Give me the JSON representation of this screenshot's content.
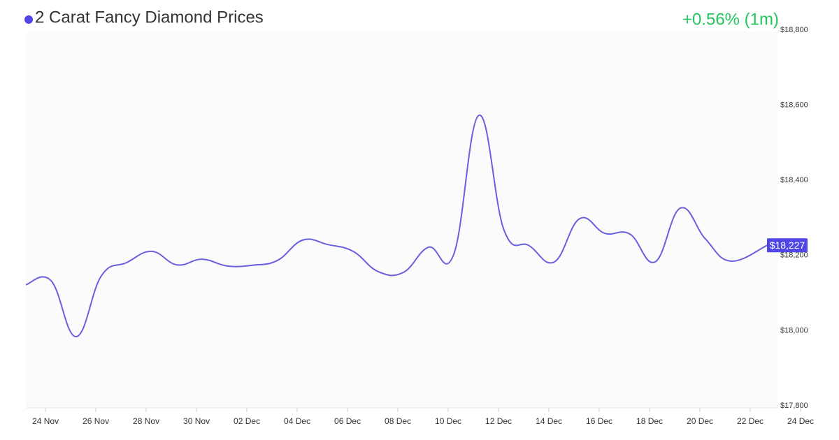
{
  "chart_data": {
    "type": "line",
    "title": "2 Carat Fancy Diamond Prices",
    "change": "+0.56% (1m)",
    "current_price": {
      "value": 18227,
      "label": "$18,227"
    },
    "x": [
      -0.78,
      0.22,
      1.22,
      2.22,
      3.22,
      4.22,
      5.22,
      6.22,
      7.22,
      8.22,
      9.22,
      10.22,
      11.22,
      12.22,
      13.22,
      14.22,
      15.22,
      16.22,
      17.22,
      18.22,
      19.22,
      20.22,
      21.22,
      22.22,
      23.22,
      24.22,
      25.22,
      26.22,
      27.22,
      28.67
    ],
    "series": [
      {
        "name": "2 Carat Fancy Diamond Prices",
        "color": "#6a5fe0",
        "values": [
          18122,
          18133,
          17984,
          18146,
          18181,
          18211,
          18175,
          18190,
          18172,
          18174,
          18187,
          18241,
          18229,
          18211,
          18157,
          18155,
          18222,
          18203,
          18573,
          18267,
          18226,
          18183,
          18298,
          18259,
          18257,
          18183,
          18326,
          18244,
          18185,
          18227
        ]
      }
    ],
    "xlim": [
      -0.78,
      29.11
    ],
    "xticks": [
      {
        "value": 0,
        "label": "24 Nov"
      },
      {
        "value": 2,
        "label": "26 Nov"
      },
      {
        "value": 4,
        "label": "28 Nov"
      },
      {
        "value": 6,
        "label": "30 Nov"
      },
      {
        "value": 8,
        "label": "02 Dec"
      },
      {
        "value": 10,
        "label": "04 Dec"
      },
      {
        "value": 12,
        "label": "06 Dec"
      },
      {
        "value": 14,
        "label": "08 Dec"
      },
      {
        "value": 16,
        "label": "10 Dec"
      },
      {
        "value": 18,
        "label": "12 Dec"
      },
      {
        "value": 20,
        "label": "14 Dec"
      },
      {
        "value": 22,
        "label": "16 Dec"
      },
      {
        "value": 24,
        "label": "18 Dec"
      },
      {
        "value": 26,
        "label": "20 Dec"
      },
      {
        "value": 28,
        "label": "22 Dec"
      },
      {
        "value": 30,
        "label": "24 Dec"
      }
    ],
    "ylim": [
      17800,
      18800
    ],
    "yticks": [
      {
        "value": 17800,
        "label": "$17,800"
      },
      {
        "value": 18000,
        "label": "$18,000"
      },
      {
        "value": 18200,
        "label": "$18,200"
      },
      {
        "value": 18400,
        "label": "$18,400"
      },
      {
        "value": 18600,
        "label": "$18,600"
      },
      {
        "value": 18800,
        "label": "$18,800"
      }
    ]
  }
}
